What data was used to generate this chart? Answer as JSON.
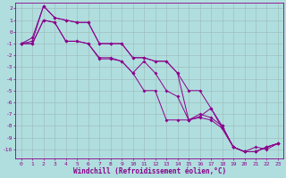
{
  "xlabel": "Windchill (Refroidissement éolien,°C)",
  "x": [
    0,
    1,
    2,
    3,
    4,
    5,
    6,
    7,
    8,
    9,
    10,
    11,
    12,
    13,
    14,
    15,
    16,
    17,
    18,
    19,
    20,
    21,
    22,
    23
  ],
  "lines": [
    [
      -1.0,
      -0.5,
      2.2,
      1.2,
      1.0,
      0.8,
      0.8,
      -1.0,
      -1.0,
      -1.0,
      -2.2,
      -2.2,
      -2.5,
      -2.5,
      -3.5,
      -7.5,
      -7.0,
      -7.3,
      -8.0,
      -9.8,
      -10.2,
      -9.8,
      -10.0,
      -9.5
    ],
    [
      -1.0,
      -0.8,
      2.2,
      1.2,
      1.0,
      0.8,
      0.8,
      -1.0,
      -1.0,
      -1.0,
      -2.2,
      -2.2,
      -2.5,
      -2.5,
      -3.5,
      -5.0,
      -5.0,
      -6.5,
      -8.0,
      -9.8,
      -10.2,
      -10.2,
      -9.8,
      -9.5
    ],
    [
      -1.0,
      -1.0,
      1.0,
      0.8,
      -0.8,
      -0.8,
      -1.0,
      -2.2,
      -2.2,
      -2.5,
      -3.5,
      -2.5,
      -3.5,
      -5.0,
      -5.5,
      -7.5,
      -7.2,
      -6.5,
      -8.2,
      -9.8,
      -10.2,
      -10.2,
      -9.8,
      -9.5
    ],
    [
      -1.0,
      -1.0,
      1.0,
      0.8,
      -0.8,
      -0.8,
      -1.0,
      -2.3,
      -2.3,
      -2.5,
      -3.5,
      -5.0,
      -5.0,
      -7.5,
      -7.5,
      -7.5,
      -7.3,
      -7.5,
      -8.2,
      -9.8,
      -10.2,
      -10.2,
      -9.8,
      -9.5
    ]
  ],
  "line_color": "#8b008b",
  "marker": "D",
  "marker_size": 2,
  "linewidth": 0.7,
  "ylim": [
    -10.8,
    2.5
  ],
  "xlim": [
    -0.5,
    23.5
  ],
  "yticks": [
    2,
    1,
    0,
    -1,
    -2,
    -3,
    -4,
    -5,
    -6,
    -7,
    -8,
    -9,
    -10
  ],
  "xticks": [
    0,
    1,
    2,
    3,
    4,
    5,
    6,
    7,
    8,
    9,
    10,
    11,
    12,
    13,
    14,
    15,
    16,
    17,
    18,
    19,
    20,
    21,
    22,
    23
  ],
  "bg_color": "#b0dede",
  "grid_color": "#9fbfbf",
  "axes_color": "#8b008b",
  "tick_color": "#8b008b",
  "label_color": "#8b008b",
  "tick_fontsize": 4.5,
  "xlabel_fontsize": 5.5
}
